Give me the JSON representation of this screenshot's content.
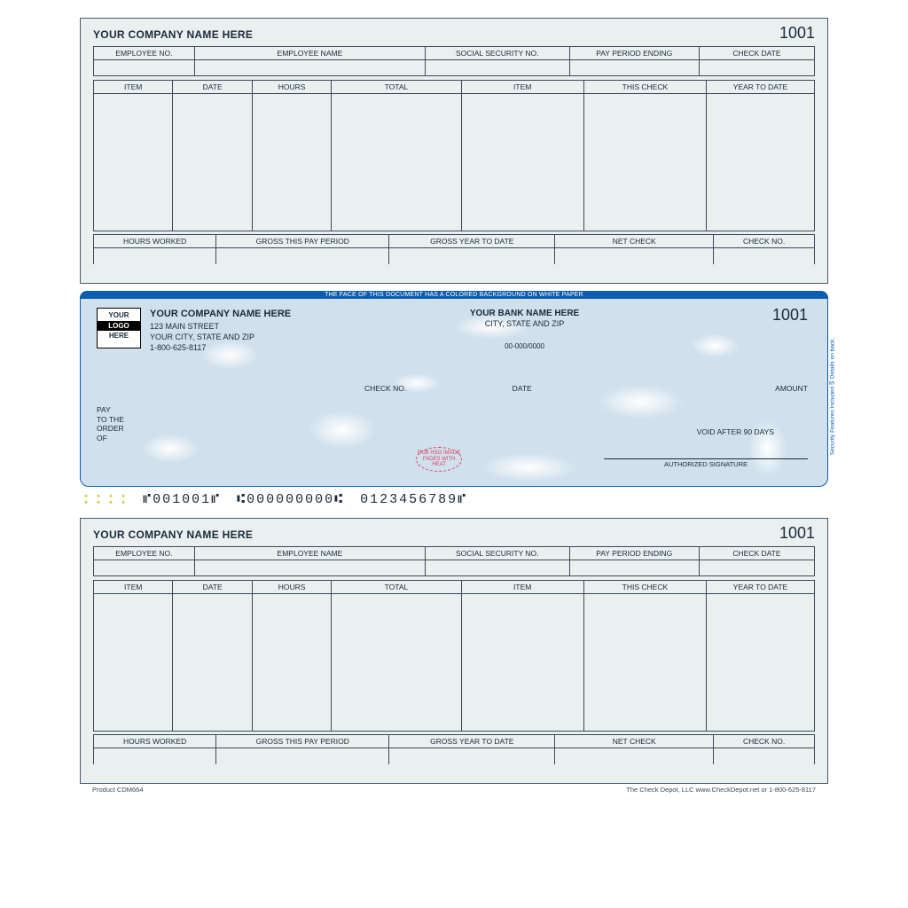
{
  "check_number": "1001",
  "stub": {
    "company_name": "YOUR COMPANY NAME HERE",
    "row1_headers": [
      "EMPLOYEE NO.",
      "EMPLOYEE NAME",
      "SOCIAL SECURITY NO.",
      "PAY PERIOD ENDING",
      "CHECK DATE"
    ],
    "row1_widths": [
      "14%",
      "32%",
      "20%",
      "18%",
      "16%"
    ],
    "main_headers": [
      "ITEM",
      "DATE",
      "HOURS",
      "TOTAL",
      "ITEM",
      "THIS CHECK",
      "YEAR TO DATE"
    ],
    "main_widths": [
      "11%",
      "11%",
      "11%",
      "18%",
      "17%",
      "17%",
      "15%"
    ],
    "footer_headers": [
      "HOURS WORKED",
      "GROSS THIS PAY PERIOD",
      "GROSS YEAR TO DATE",
      "NET CHECK",
      "CHECK NO."
    ],
    "footer_widths": [
      "17%",
      "24%",
      "23%",
      "22%",
      "14%"
    ]
  },
  "check": {
    "security_banner": "THE FACE OF THIS DOCUMENT HAS A COLORED BACKGROUND ON WHITE PAPER",
    "logo": {
      "l1": "YOUR",
      "l2": "LOGO",
      "l3": "HERE"
    },
    "company": {
      "name": "YOUR COMPANY NAME HERE",
      "addr1": "123 MAIN STREET",
      "addr2": "YOUR CITY, STATE AND ZIP",
      "phone": "1-800-625-8117"
    },
    "bank": {
      "name": "YOUR BANK NAME HERE",
      "addr": "CITY, STATE AND ZIP"
    },
    "fraction": "00-000/0000",
    "labels": {
      "checkno": "CHECK NO.",
      "date": "DATE",
      "amount": "AMOUNT"
    },
    "pay_to": {
      "l1": "PAY",
      "l2": "TO THE",
      "l3": "ORDER",
      "l4": "OF"
    },
    "void": "VOID AFTER 90 DAYS",
    "signature": "AUTHORIZED SIGNATURE",
    "heat": "RUB HSO IMAGE\nFADES WITH HEAT",
    "side": "Security Features Included   ⎘   Details on back.",
    "micr": {
      "a": "⑈001001⑈",
      "b": "⑆000000000⑆",
      "c": "0123456789⑈"
    }
  },
  "footer": {
    "product": "Product CDM664",
    "company": "The Check Depot, LLC   www.CheckDepot.net   or   1-800-625-8117"
  },
  "colors": {
    "stub_bg": "#eaf0f0",
    "border": "#3a4a5a",
    "blue": "#0b5db0",
    "check_bg": "#d0e0ec"
  }
}
